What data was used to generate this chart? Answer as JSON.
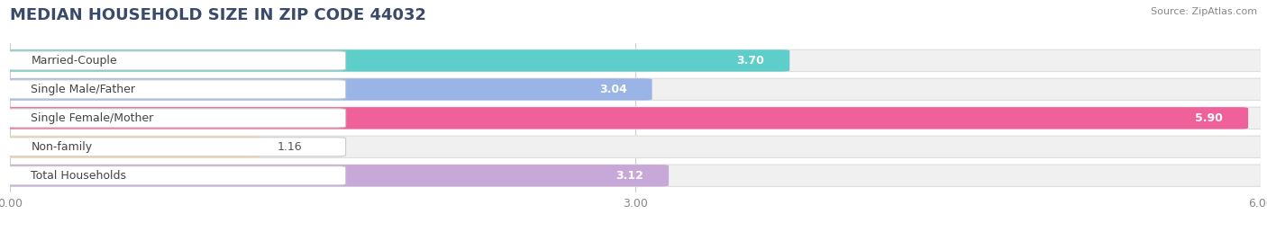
{
  "title": "MEDIAN HOUSEHOLD SIZE IN ZIP CODE 44032",
  "source": "Source: ZipAtlas.com",
  "categories": [
    "Married-Couple",
    "Single Male/Father",
    "Single Female/Mother",
    "Non-family",
    "Total Households"
  ],
  "values": [
    3.7,
    3.04,
    5.9,
    1.16,
    3.12
  ],
  "bar_colors": [
    "#5ececa",
    "#9ab4e8",
    "#f0609a",
    "#f8d8a8",
    "#c8a8d8"
  ],
  "xlim": [
    0,
    6.0
  ],
  "xticks": [
    0.0,
    3.0,
    6.0
  ],
  "xtick_labels": [
    "0.00",
    "3.00",
    "6.00"
  ],
  "background_color": "#ffffff",
  "bar_bg_color": "#f0f0f0",
  "title_fontsize": 13,
  "label_fontsize": 9,
  "value_fontsize": 9,
  "bar_height": 0.68,
  "bar_gap": 1.0
}
